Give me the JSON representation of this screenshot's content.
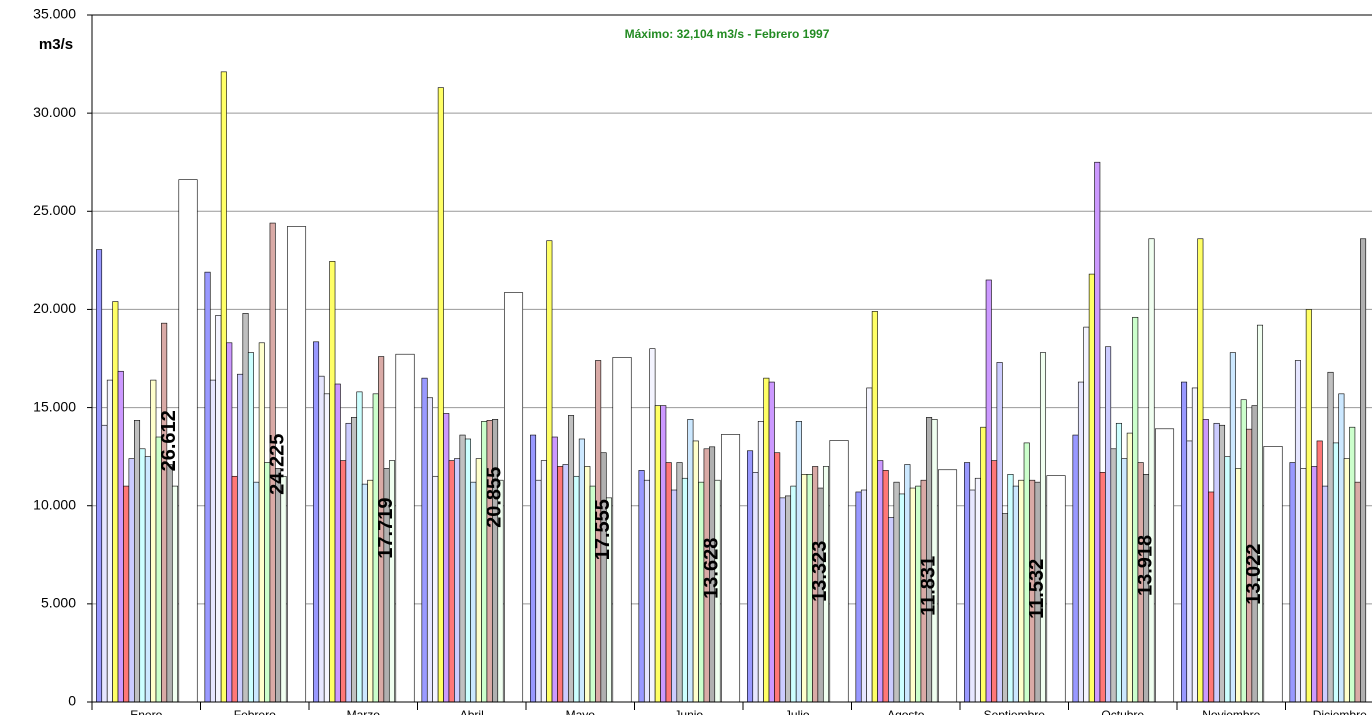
{
  "chart_data": {
    "type": "bar",
    "annotation": "Máximo: 32,104 m3/s - Febrero 1997",
    "y_label": "m3/s",
    "categories": [
      "Enero",
      "Febrero",
      "Marzo",
      "Abril",
      "Mayo",
      "Junio",
      "Julio",
      "Agosto",
      "Septiembre",
      "Octubre",
      "Noviembre",
      "Diciembre"
    ],
    "ylim": [
      0,
      35000
    ],
    "yticks": [
      0,
      {
        "value": 5000,
        "label": "5.000"
      },
      {
        "value": 10000,
        "label": "10.000"
      },
      {
        "value": 15000,
        "label": "15.000"
      },
      {
        "value": 20000,
        "label": "20.000"
      },
      {
        "value": 25000,
        "label": "25.000"
      },
      {
        "value": 30000,
        "label": "30.000"
      },
      {
        "value": 35000,
        "label": "35.000"
      }
    ],
    "grid": true,
    "series": [
      {
        "color": "#9999ff",
        "values": [
          23050,
          21900,
          18350,
          16500,
          13600,
          11800,
          12800,
          10700,
          12200,
          13600,
          16300,
          12200
        ]
      },
      {
        "color": "#e6e6ff",
        "values": [
          14100,
          16400,
          16600,
          15500,
          11300,
          11300,
          11700,
          10800,
          10800,
          16300,
          13300,
          17400
        ]
      },
      {
        "color": "#f4f4ff",
        "values": [
          16400,
          19700,
          15700,
          11500,
          12300,
          18000,
          14300,
          16000,
          11400,
          19100,
          16000,
          11900
        ]
      },
      {
        "color": "#ffff66",
        "values": [
          20400,
          32104,
          22450,
          31300,
          23500,
          15100,
          16500,
          19900,
          14000,
          21800,
          23600,
          20000
        ]
      },
      {
        "color": "#cc99ff",
        "values": [
          16850,
          18300,
          16200,
          14700,
          13500,
          15100,
          16300,
          12300,
          21500,
          27500,
          14400,
          12000
        ]
      },
      {
        "color": "#ff7777",
        "values": [
          11000,
          11500,
          12300,
          12300,
          12000,
          12200,
          12700,
          11800,
          12300,
          11700,
          10700,
          13300
        ]
      },
      {
        "color": "#ccccff",
        "values": [
          12400,
          16700,
          14200,
          12400,
          12100,
          10800,
          10400,
          9400,
          17300,
          18100,
          14200,
          11000
        ]
      },
      {
        "color": "#c0c0c0",
        "values": [
          14350,
          19800,
          14500,
          13600,
          14600,
          12200,
          10500,
          11200,
          9600,
          12900,
          14100,
          16800
        ]
      },
      {
        "color": "#ccffff",
        "values": [
          12900,
          17800,
          15800,
          13400,
          11500,
          11400,
          11000,
          10600,
          11600,
          14200,
          12500,
          13200
        ]
      },
      {
        "color": "#cce8ff",
        "values": [
          12500,
          11200,
          11100,
          11200,
          13400,
          14400,
          14300,
          12100,
          11000,
          12400,
          17800,
          15700
        ]
      },
      {
        "color": "#ffffcc",
        "values": [
          16400,
          18300,
          11300,
          12400,
          12000,
          13300,
          11600,
          10900,
          11300,
          13700,
          11900,
          12400
        ]
      },
      {
        "color": "#ccffcc",
        "values": [
          13500,
          12200,
          15700,
          14300,
          11000,
          11200,
          11600,
          11000,
          13200,
          19600,
          15400,
          14000
        ]
      },
      {
        "color": "#d9aaa6",
        "values": [
          19300,
          24400,
          17600,
          14350,
          17400,
          12900,
          12000,
          11300,
          11300,
          12200,
          13900,
          11200
        ]
      },
      {
        "color": "#b0b0b0",
        "values": [
          12100,
          11900,
          11900,
          14400,
          12700,
          13000,
          10900,
          14500,
          11200,
          11600,
          15100,
          23600
        ]
      },
      {
        "color": "#f0fff0",
        "values": [
          11000,
          11500,
          12300,
          11300,
          10400,
          11300,
          12000,
          14400,
          17800,
          23600,
          19200,
          null
        ]
      },
      {
        "color": "#ffffff",
        "values": [
          26612,
          24225,
          17719,
          20855,
          17555,
          13628,
          13323,
          11831,
          11532,
          13918,
          13022,
          null
        ],
        "value_labels": [
          "26.612",
          "24.225",
          "17.719",
          "20.855",
          "17.555",
          "13.628",
          "13.323",
          "11.831",
          "11.532",
          "13.918",
          "13.022",
          null
        ]
      }
    ]
  }
}
